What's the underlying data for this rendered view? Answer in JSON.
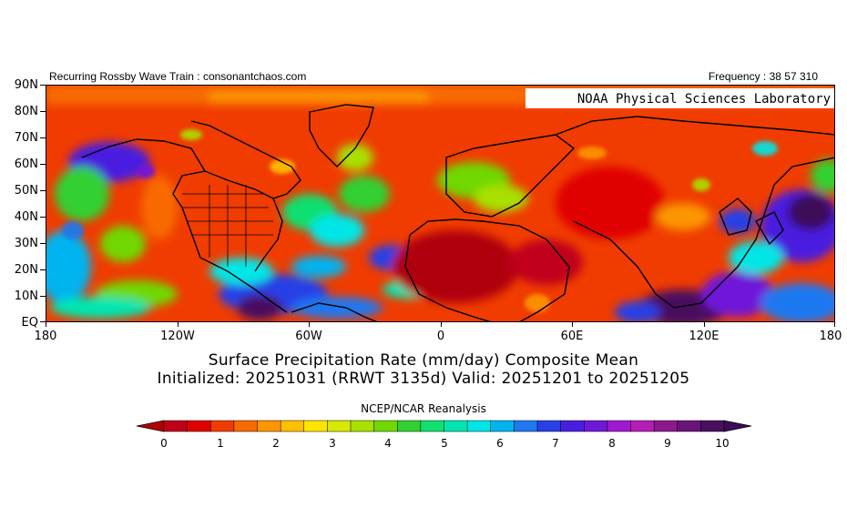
{
  "header": {
    "left_text": "Recurring Rossby Wave Train : consonantchaos.com",
    "right_text": "Frequency : 38 57 310",
    "badge": "NOAA Physical Sciences Laboratory"
  },
  "axes": {
    "lat_labels": [
      "90N",
      "80N",
      "70N",
      "60N",
      "50N",
      "40N",
      "30N",
      "20N",
      "10N",
      "EQ"
    ],
    "lon_labels": [
      "180",
      "120W",
      "60W",
      "0",
      "60E",
      "120E",
      "180"
    ]
  },
  "titles": {
    "line1": "Surface Precipitation Rate (mm/day) Composite Mean",
    "line2": "Initialized: 20251031 (RRWT 3135d) Valid: 20251201 to 20251205",
    "source": "NCEP/NCAR Reanalysis"
  },
  "colorbar": {
    "labels": [
      "0",
      "1",
      "2",
      "3",
      "4",
      "5",
      "6",
      "7",
      "8",
      "9",
      "10"
    ],
    "colors": [
      "#c0001a",
      "#e00000",
      "#f03c00",
      "#f86a00",
      "#fc9600",
      "#ffc000",
      "#ffe400",
      "#d8e800",
      "#a8e000",
      "#70d800",
      "#30d030",
      "#10e070",
      "#00e6b0",
      "#00e6e6",
      "#00b4f0",
      "#1e78f0",
      "#2840e6",
      "#4a1ee0",
      "#7018d8",
      "#a018d0",
      "#b41eb4",
      "#8c1a8c",
      "#6a1478",
      "#4a1060"
    ],
    "under_color": "#b40000",
    "over_color": "#3c0c58"
  }
}
